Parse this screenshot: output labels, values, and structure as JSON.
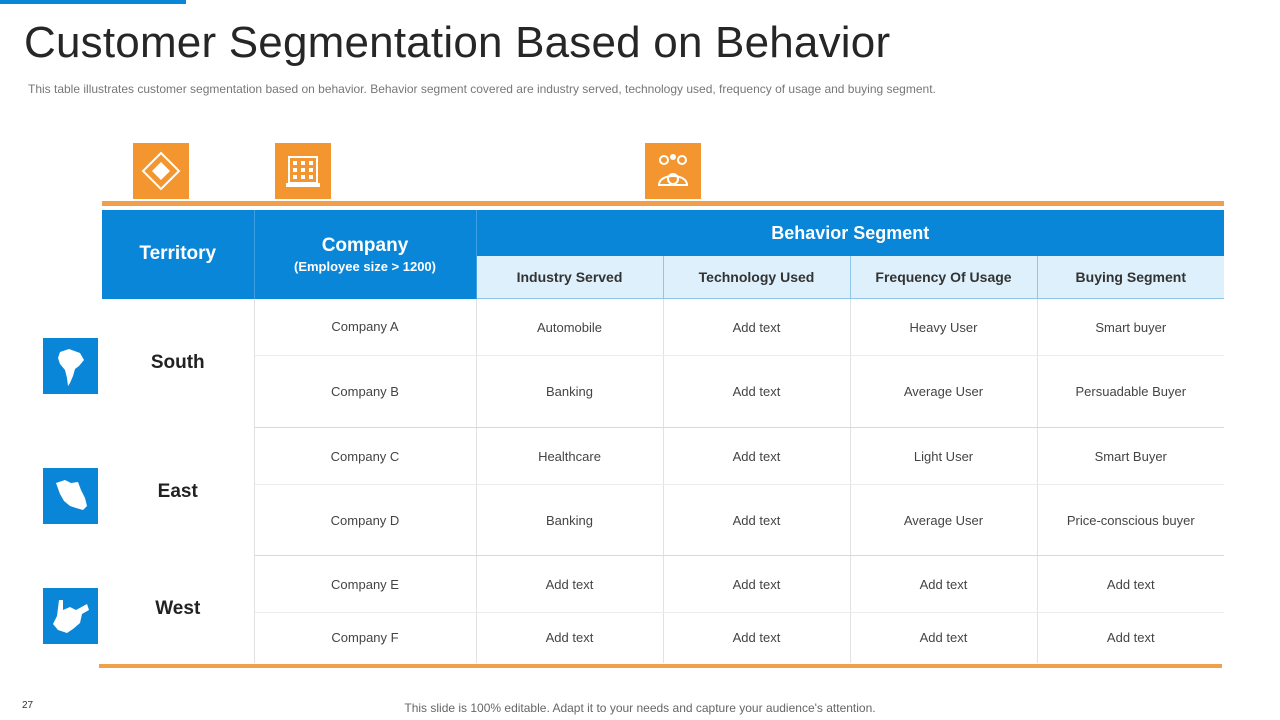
{
  "title": "Customer Segmentation Based on Behavior",
  "subtitle": "This table illustrates customer segmentation based on behavior.  Behavior  segment covered  are industry served,  technology used, frequency  of usage and buying segment.",
  "colors": {
    "accent_blue": "#0a86d8",
    "accent_orange": "#f3962f",
    "subheader_bg": "#ddf0fb"
  },
  "header_icons": [
    "diamond-icon",
    "building-icon",
    "people-gears-icon"
  ],
  "table": {
    "territory_header": "Territory",
    "company_header": "Company",
    "company_subheader": "(Employee size > 1200)",
    "behavior_header": "Behavior Segment",
    "behavior_columns": [
      "Industry Served",
      "Technology Used",
      "Frequency Of Usage",
      "Buying Segment"
    ],
    "regions": [
      {
        "name": "South",
        "icon": "south-america-map-icon",
        "rows": [
          [
            "Company A",
            "Automobile",
            "Add text",
            "Heavy User",
            "Smart buyer"
          ],
          [
            "Company B",
            "Banking",
            "Add text",
            "Average  User",
            "Persuadable  Buyer"
          ]
        ]
      },
      {
        "name": "East",
        "icon": "east-region-map-icon",
        "rows": [
          [
            "Company C",
            "Healthcare",
            "Add text",
            "Light User",
            "Smart Buyer"
          ],
          [
            "Company D",
            "Banking",
            "Add text",
            "Average  User",
            "Price-conscious buyer"
          ]
        ]
      },
      {
        "name": "West",
        "icon": "west-virginia-map-icon",
        "rows": [
          [
            "Company E",
            "Add text",
            "Add text",
            "Add text",
            "Add text"
          ],
          [
            "Company F",
            "Add text",
            "Add text",
            "Add text",
            "Add text"
          ]
        ]
      }
    ]
  },
  "page_number": "27",
  "footer": "This slide is 100% editable. Adapt it to your needs and capture your audience's attention."
}
